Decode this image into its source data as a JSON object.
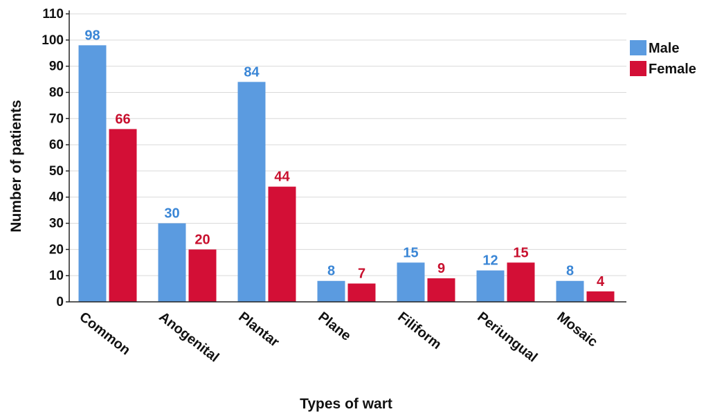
{
  "chart_data": {
    "type": "bar",
    "xlabel": "Types of wart",
    "ylabel": "Number of patients",
    "ylim": [
      0,
      110
    ],
    "ytick_step": 10,
    "grid": true,
    "legend_position": "top-right",
    "categories": [
      "Common",
      "Anogenital",
      "Plantar",
      "Plane",
      "Filiform",
      "Periungual",
      "Mosaic"
    ],
    "series": [
      {
        "name": "Male",
        "color": "#5b9be0",
        "label_color": "#3a86d6",
        "values": [
          98,
          30,
          84,
          8,
          15,
          12,
          8
        ]
      },
      {
        "name": "Female",
        "color": "#d30f36",
        "label_color": "#c8102e",
        "values": [
          66,
          20,
          44,
          7,
          9,
          15,
          4
        ]
      }
    ]
  }
}
